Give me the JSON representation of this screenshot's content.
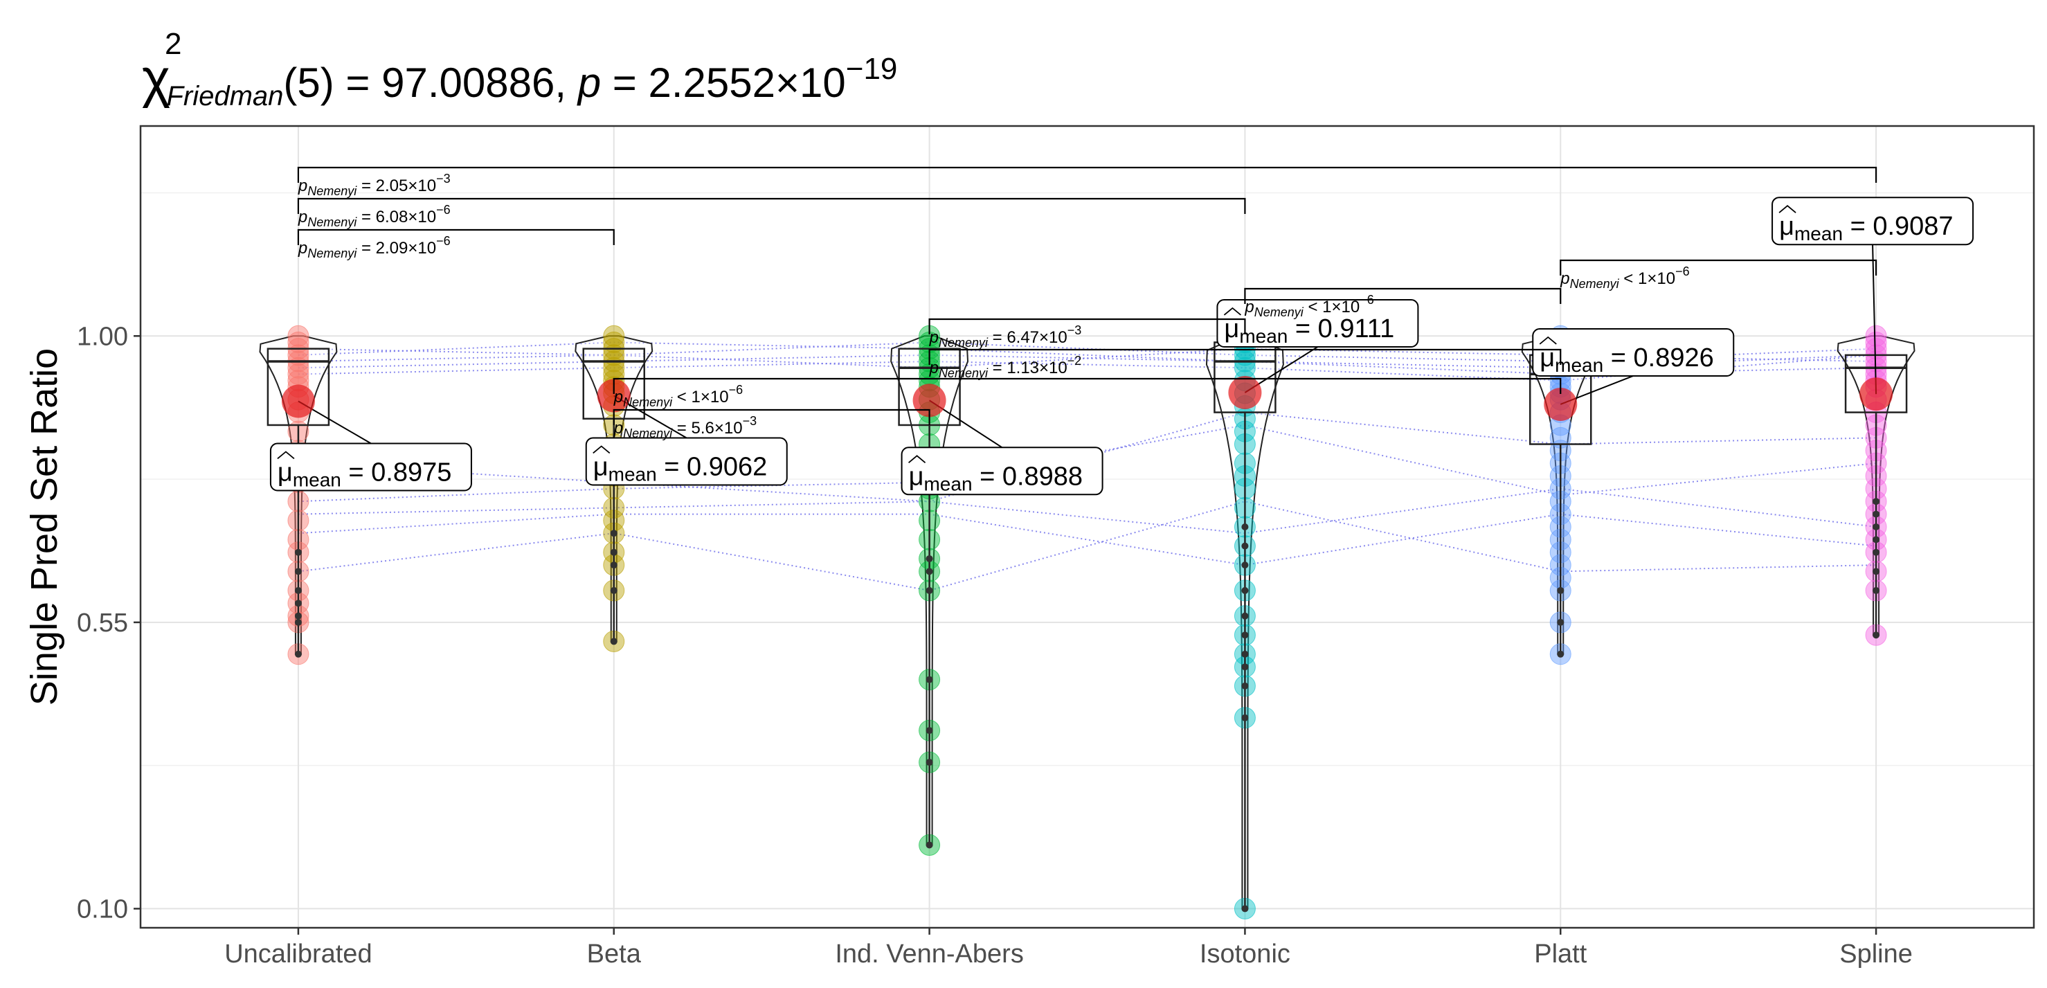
{
  "chart_data": {
    "type": "scatter",
    "subtype": "violin-box-paired",
    "title": {
      "chi_symbol": "χ",
      "chi_exponent": "2",
      "chi_subscript": "Friedman",
      "df": "(5)",
      "stat_text": " = 97.00886, ",
      "p_symbol": "p",
      "p_text": " = 2.2552×10",
      "p_exponent": "−19"
    },
    "ylabel": "Single Pred Set Ratio",
    "xlabel": "",
    "ylim": [
      0.07,
      1.33
    ],
    "yticks": [
      "0.10",
      "0.55",
      "1.00"
    ],
    "grid": true,
    "categories": [
      "Uncalibrated",
      "Beta",
      "Ind. Venn-Abers",
      "Isotonic",
      "Platt",
      "Spline"
    ],
    "colors": [
      "#f8766d",
      "#b79f00",
      "#00ba38",
      "#00bfc4",
      "#619cff",
      "#f564e3"
    ],
    "means": [
      0.8975,
      0.9062,
      0.8988,
      0.9111,
      0.8926,
      0.9087
    ],
    "mean_label_prefix": "μ",
    "mean_label_sub": "mean",
    "mean_labels": [
      "= 0.8975",
      "= 0.9062",
      "= 0.8988",
      "= 0.9111",
      "= 0.8926",
      "= 0.9087"
    ],
    "boxes": [
      {
        "q1": 0.86,
        "median": 0.96,
        "q3": 0.98,
        "min": 0.5,
        "max": 1.0
      },
      {
        "q1": 0.87,
        "median": 0.96,
        "q3": 0.98,
        "min": 0.52,
        "max": 1.0
      },
      {
        "q1": 0.86,
        "median": 0.95,
        "q3": 0.98,
        "min": 0.2,
        "max": 1.0
      },
      {
        "q1": 0.88,
        "median": 0.96,
        "q3": 0.99,
        "min": 0.1,
        "max": 1.0
      },
      {
        "q1": 0.83,
        "median": 0.94,
        "q3": 0.97,
        "min": 0.5,
        "max": 1.0
      },
      {
        "q1": 0.88,
        "median": 0.95,
        "q3": 0.97,
        "min": 0.53,
        "max": 1.0
      }
    ],
    "points": [
      [
        1.0,
        0.99,
        0.98,
        0.97,
        0.96,
        0.95,
        0.94,
        0.93,
        0.92,
        0.9,
        0.88,
        0.85,
        0.82,
        0.8,
        0.77,
        0.74,
        0.71,
        0.68,
        0.66,
        0.63,
        0.6,
        0.58,
        0.56,
        0.55,
        0.5
      ],
      [
        1.0,
        0.99,
        0.98,
        0.97,
        0.96,
        0.95,
        0.94,
        0.93,
        0.92,
        0.91,
        0.89,
        0.86,
        0.83,
        0.8,
        0.78,
        0.76,
        0.73,
        0.71,
        0.69,
        0.66,
        0.64,
        0.6,
        0.52
      ],
      [
        1.0,
        0.99,
        0.98,
        0.97,
        0.96,
        0.95,
        0.94,
        0.93,
        0.92,
        0.9,
        0.88,
        0.86,
        0.83,
        0.8,
        0.78,
        0.76,
        0.74,
        0.71,
        0.68,
        0.65,
        0.63,
        0.6,
        0.46,
        0.38,
        0.33,
        0.2
      ],
      [
        1.0,
        0.99,
        0.98,
        0.97,
        0.96,
        0.95,
        0.93,
        0.91,
        0.89,
        0.87,
        0.85,
        0.83,
        0.8,
        0.78,
        0.76,
        0.73,
        0.7,
        0.67,
        0.64,
        0.6,
        0.56,
        0.53,
        0.5,
        0.48,
        0.45,
        0.4,
        0.1
      ],
      [
        1.0,
        0.99,
        0.98,
        0.97,
        0.96,
        0.95,
        0.94,
        0.93,
        0.92,
        0.91,
        0.9,
        0.88,
        0.86,
        0.84,
        0.82,
        0.8,
        0.78,
        0.76,
        0.74,
        0.72,
        0.7,
        0.68,
        0.66,
        0.64,
        0.62,
        0.6,
        0.55,
        0.5
      ],
      [
        1.0,
        0.99,
        0.98,
        0.97,
        0.96,
        0.95,
        0.94,
        0.93,
        0.92,
        0.9,
        0.88,
        0.86,
        0.84,
        0.82,
        0.8,
        0.78,
        0.76,
        0.74,
        0.72,
        0.7,
        0.68,
        0.66,
        0.63,
        0.6,
        0.53
      ]
    ],
    "paired_lines": [
      [
        0.97,
        0.99,
        0.98,
        0.96,
        0.95,
        0.97
      ],
      [
        0.98,
        0.97,
        0.99,
        0.97,
        0.96,
        0.98
      ],
      [
        0.96,
        0.97,
        0.95,
        0.98,
        0.97,
        0.96
      ],
      [
        0.95,
        0.96,
        0.97,
        0.96,
        0.94,
        0.95
      ],
      [
        0.94,
        0.95,
        0.96,
        0.95,
        0.93,
        0.97
      ],
      [
        0.8,
        0.77,
        0.74,
        0.88,
        0.83,
        0.84
      ],
      [
        0.74,
        0.76,
        0.77,
        0.86,
        0.75,
        0.8
      ],
      [
        0.72,
        0.73,
        0.74,
        0.69,
        0.76,
        0.7
      ],
      [
        0.63,
        0.69,
        0.6,
        0.74,
        0.63,
        0.64
      ],
      [
        0.69,
        0.72,
        0.72,
        0.64,
        0.72,
        0.67
      ]
    ],
    "comparisons": [
      {
        "from": 0,
        "to": 5,
        "p_value_text": "= 2.05×10",
        "p_exponent": "−3"
      },
      {
        "from": 0,
        "to": 3,
        "p_value_text": "= 6.08×10",
        "p_exponent": "−6"
      },
      {
        "from": 0,
        "to": 1,
        "p_value_text": "= 2.09×10",
        "p_exponent": "−6"
      },
      {
        "from": 4,
        "to": 5,
        "p_value_text": "< 1×10",
        "p_exponent": "−6"
      },
      {
        "from": 3,
        "to": 4,
        "p_value_text": "< 1×10",
        "p_exponent": "−6"
      },
      {
        "from": 2,
        "to": 3,
        "p_value_text": "= 6.47×10",
        "p_exponent": "−3"
      },
      {
        "from": 2,
        "to": 4,
        "p_value_text": "= 1.13×10",
        "p_exponent": "−2"
      },
      {
        "from": 1,
        "to": 4,
        "p_value_text": "< 1×10",
        "p_exponent": "−6"
      },
      {
        "from": 1,
        "to": 2,
        "p_value_text": "= 5.6×10",
        "p_exponent": "−3"
      }
    ],
    "comparison_p_symbol": "p",
    "comparison_p_subscript": "Nemenyi"
  }
}
